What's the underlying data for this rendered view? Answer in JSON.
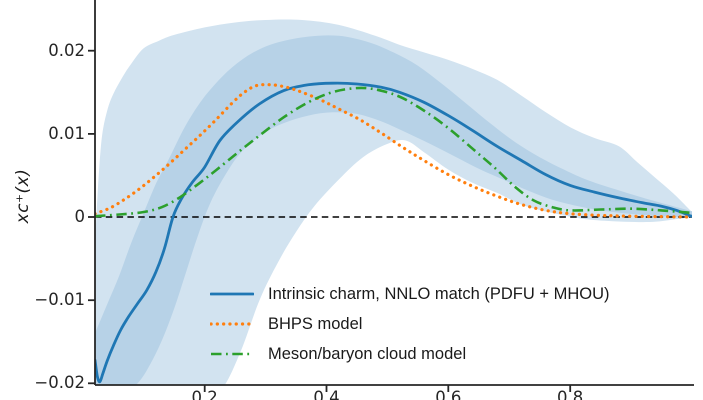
{
  "chart_data": {
    "type": "line",
    "title": "",
    "xlabel": "",
    "ylabel": "xc⁺(x)",
    "xlim": [
      0.02,
      1.0
    ],
    "ylim": [
      -0.0202,
      0.0261
    ],
    "grid": false,
    "zero_line": {
      "y": 0,
      "style": "dashed",
      "color": "#000000"
    },
    "x_ticks": {
      "values": [
        0.2,
        0.4,
        0.6,
        0.8
      ],
      "labels": [
        "0.2",
        "0.4",
        "0.6",
        "0.8"
      ]
    },
    "y_ticks": {
      "values": [
        0.02,
        0.01,
        0,
        -0.01,
        -0.02
      ],
      "labels": [
        "0.02",
        "0.01",
        "0",
        "−0.01",
        "−0.02"
      ]
    },
    "legend_position": "lower right inside",
    "axis_color": "#262626",
    "bands": [
      {
        "id": "outer-uncertainty-band",
        "color": "#d2e3f0",
        "upper": [
          [
            0.02,
            -0.0035
          ],
          [
            0.023,
            0.001
          ],
          [
            0.027,
            0.006
          ],
          [
            0.032,
            0.01
          ],
          [
            0.04,
            0.0128
          ],
          [
            0.05,
            0.0148
          ],
          [
            0.065,
            0.0168
          ],
          [
            0.08,
            0.0185
          ],
          [
            0.1,
            0.0203
          ],
          [
            0.125,
            0.0212
          ],
          [
            0.15,
            0.0219
          ],
          [
            0.2,
            0.0228
          ],
          [
            0.25,
            0.0234
          ],
          [
            0.3,
            0.0237
          ],
          [
            0.36,
            0.0237
          ],
          [
            0.42,
            0.0231
          ],
          [
            0.48,
            0.0218
          ],
          [
            0.52,
            0.0207
          ],
          [
            0.56,
            0.0198
          ],
          [
            0.6,
            0.0189
          ],
          [
            0.64,
            0.0178
          ],
          [
            0.68,
            0.0165
          ],
          [
            0.72,
            0.0146
          ],
          [
            0.76,
            0.0126
          ],
          [
            0.8,
            0.0108
          ],
          [
            0.84,
            0.0095
          ],
          [
            0.88,
            0.0085
          ],
          [
            0.91,
            0.0066
          ],
          [
            0.94,
            0.0047
          ],
          [
            0.97,
            0.0028
          ],
          [
            1.0,
            0.0006
          ]
        ],
        "lower": [
          [
            0.02,
            -0.023
          ],
          [
            0.1,
            -0.0225
          ],
          [
            0.16,
            -0.022
          ],
          [
            0.2,
            -0.0215
          ],
          [
            0.23,
            -0.0205
          ],
          [
            0.26,
            -0.016
          ],
          [
            0.29,
            -0.01
          ],
          [
            0.32,
            -0.0055
          ],
          [
            0.35,
            -0.0018
          ],
          [
            0.38,
            0.0013
          ],
          [
            0.42,
            0.0045
          ],
          [
            0.46,
            0.0072
          ],
          [
            0.5,
            0.0088
          ],
          [
            0.53,
            0.0092
          ],
          [
            0.56,
            0.0078
          ],
          [
            0.6,
            0.0057
          ],
          [
            0.64,
            0.0041
          ],
          [
            0.68,
            0.0029
          ],
          [
            0.72,
            0.0015
          ],
          [
            0.77,
            0.0005
          ],
          [
            0.82,
            -0.0002
          ],
          [
            0.87,
            -0.0005
          ],
          [
            0.93,
            -0.0006
          ],
          [
            0.97,
            -0.0003
          ],
          [
            1.0,
            0.0
          ]
        ]
      },
      {
        "id": "inner-uncertainty-band",
        "color": "#b7d2e7",
        "upper": [
          [
            0.02,
            -0.014
          ],
          [
            0.04,
            -0.0105
          ],
          [
            0.06,
            -0.007
          ],
          [
            0.08,
            -0.003
          ],
          [
            0.1,
            0.0005
          ],
          [
            0.12,
            0.004
          ],
          [
            0.14,
            0.0068
          ],
          [
            0.165,
            0.0105
          ],
          [
            0.19,
            0.0135
          ],
          [
            0.215,
            0.0158
          ],
          [
            0.245,
            0.018
          ],
          [
            0.28,
            0.0198
          ],
          [
            0.32,
            0.021
          ],
          [
            0.37,
            0.0217
          ],
          [
            0.42,
            0.0218
          ],
          [
            0.47,
            0.021
          ],
          [
            0.51,
            0.0198
          ],
          [
            0.55,
            0.0182
          ],
          [
            0.59,
            0.016
          ],
          [
            0.63,
            0.0136
          ],
          [
            0.67,
            0.0112
          ],
          [
            0.71,
            0.009
          ],
          [
            0.75,
            0.0072
          ],
          [
            0.79,
            0.0057
          ],
          [
            0.83,
            0.0044
          ],
          [
            0.88,
            0.0032
          ],
          [
            0.93,
            0.0021
          ],
          [
            1.0,
            0.0007
          ]
        ],
        "lower": [
          [
            0.02,
            -0.0225
          ],
          [
            0.06,
            -0.0218
          ],
          [
            0.09,
            -0.02
          ],
          [
            0.11,
            -0.0178
          ],
          [
            0.13,
            -0.0148
          ],
          [
            0.15,
            -0.011
          ],
          [
            0.17,
            -0.0065
          ],
          [
            0.19,
            -0.002
          ],
          [
            0.21,
            0.0018
          ],
          [
            0.235,
            0.0052
          ],
          [
            0.26,
            0.0078
          ],
          [
            0.295,
            0.01
          ],
          [
            0.33,
            0.0113
          ],
          [
            0.37,
            0.0122
          ],
          [
            0.41,
            0.0126
          ],
          [
            0.45,
            0.0124
          ],
          [
            0.49,
            0.0115
          ],
          [
            0.53,
            0.0102
          ],
          [
            0.57,
            0.0088
          ],
          [
            0.61,
            0.0073
          ],
          [
            0.65,
            0.0058
          ],
          [
            0.69,
            0.0045
          ],
          [
            0.73,
            0.0032
          ],
          [
            0.77,
            0.0021
          ],
          [
            0.82,
            0.0012
          ],
          [
            0.87,
            0.0006
          ],
          [
            0.93,
            0.0002
          ],
          [
            1.0,
            -0.0001
          ]
        ]
      }
    ],
    "series": [
      {
        "name": "Intrinsic charm, NNLO match (PDFU + MHOU)",
        "id": "intrinsic-charm",
        "color": "#1f77b4",
        "style": "solid",
        "points": [
          [
            0.02,
            -0.0172
          ],
          [
            0.024,
            -0.0192
          ],
          [
            0.028,
            -0.0198
          ],
          [
            0.033,
            -0.0188
          ],
          [
            0.04,
            -0.0173
          ],
          [
            0.05,
            -0.0155
          ],
          [
            0.062,
            -0.0136
          ],
          [
            0.075,
            -0.012
          ],
          [
            0.09,
            -0.0104
          ],
          [
            0.105,
            -0.0088
          ],
          [
            0.12,
            -0.0066
          ],
          [
            0.134,
            -0.0038
          ],
          [
            0.148,
            0.0
          ],
          [
            0.162,
            0.0022
          ],
          [
            0.18,
            0.0042
          ],
          [
            0.2,
            0.006
          ],
          [
            0.225,
            0.0092
          ],
          [
            0.255,
            0.0115
          ],
          [
            0.29,
            0.0136
          ],
          [
            0.33,
            0.0152
          ],
          [
            0.37,
            0.0159
          ],
          [
            0.41,
            0.0161
          ],
          [
            0.45,
            0.016
          ],
          [
            0.49,
            0.0156
          ],
          [
            0.52,
            0.015
          ],
          [
            0.56,
            0.0138
          ],
          [
            0.6,
            0.0122
          ],
          [
            0.64,
            0.0104
          ],
          [
            0.68,
            0.0085
          ],
          [
            0.72,
            0.0068
          ],
          [
            0.76,
            0.0051
          ],
          [
            0.8,
            0.0038
          ],
          [
            0.84,
            0.003
          ],
          [
            0.88,
            0.0023
          ],
          [
            0.92,
            0.0017
          ],
          [
            0.95,
            0.0013
          ],
          [
            0.975,
            0.0008
          ],
          [
            0.995,
            0.0002
          ],
          [
            1.0,
            0.0001
          ]
        ]
      },
      {
        "name": "BHPS model",
        "id": "bhps-model",
        "color": "#ff7f0e",
        "style": "dotted",
        "points": [
          [
            0.02,
            0.0004
          ],
          [
            0.045,
            0.0011
          ],
          [
            0.07,
            0.0022
          ],
          [
            0.095,
            0.0035
          ],
          [
            0.12,
            0.005
          ],
          [
            0.145,
            0.0066
          ],
          [
            0.17,
            0.0083
          ],
          [
            0.195,
            0.01
          ],
          [
            0.22,
            0.0118
          ],
          [
            0.245,
            0.0137
          ],
          [
            0.265,
            0.015
          ],
          [
            0.285,
            0.0158
          ],
          [
            0.31,
            0.0159
          ],
          [
            0.335,
            0.0156
          ],
          [
            0.36,
            0.015
          ],
          [
            0.39,
            0.0141
          ],
          [
            0.42,
            0.013
          ],
          [
            0.455,
            0.0117
          ],
          [
            0.49,
            0.0101
          ],
          [
            0.525,
            0.0084
          ],
          [
            0.56,
            0.0068
          ],
          [
            0.6,
            0.0051
          ],
          [
            0.64,
            0.0037
          ],
          [
            0.68,
            0.0025
          ],
          [
            0.72,
            0.0015
          ],
          [
            0.76,
            0.0008
          ],
          [
            0.8,
            0.0004
          ],
          [
            0.85,
            0.0002
          ],
          [
            0.9,
            0.0001
          ],
          [
            1.0,
            0.0
          ]
        ]
      },
      {
        "name": "Meson/baryon cloud model",
        "id": "meson-baryon-cloud-model",
        "color": "#2ca02c",
        "style": "dashdot",
        "points": [
          [
            0.02,
            0.0001
          ],
          [
            0.06,
            0.0003
          ],
          [
            0.1,
            0.0006
          ],
          [
            0.13,
            0.0012
          ],
          [
            0.16,
            0.0024
          ],
          [
            0.19,
            0.004
          ],
          [
            0.22,
            0.0057
          ],
          [
            0.255,
            0.0078
          ],
          [
            0.29,
            0.0098
          ],
          [
            0.33,
            0.012
          ],
          [
            0.37,
            0.0138
          ],
          [
            0.405,
            0.0149
          ],
          [
            0.435,
            0.0154
          ],
          [
            0.465,
            0.0155
          ],
          [
            0.495,
            0.0151
          ],
          [
            0.525,
            0.0143
          ],
          [
            0.56,
            0.0128
          ],
          [
            0.6,
            0.0107
          ],
          [
            0.64,
            0.0082
          ],
          [
            0.675,
            0.006
          ],
          [
            0.71,
            0.0036
          ],
          [
            0.74,
            0.002
          ],
          [
            0.77,
            0.0012
          ],
          [
            0.8,
            0.0008
          ],
          [
            0.85,
            0.0009
          ],
          [
            0.9,
            0.001
          ],
          [
            0.95,
            0.0008
          ],
          [
            1.0,
            0.0005
          ]
        ]
      }
    ]
  }
}
